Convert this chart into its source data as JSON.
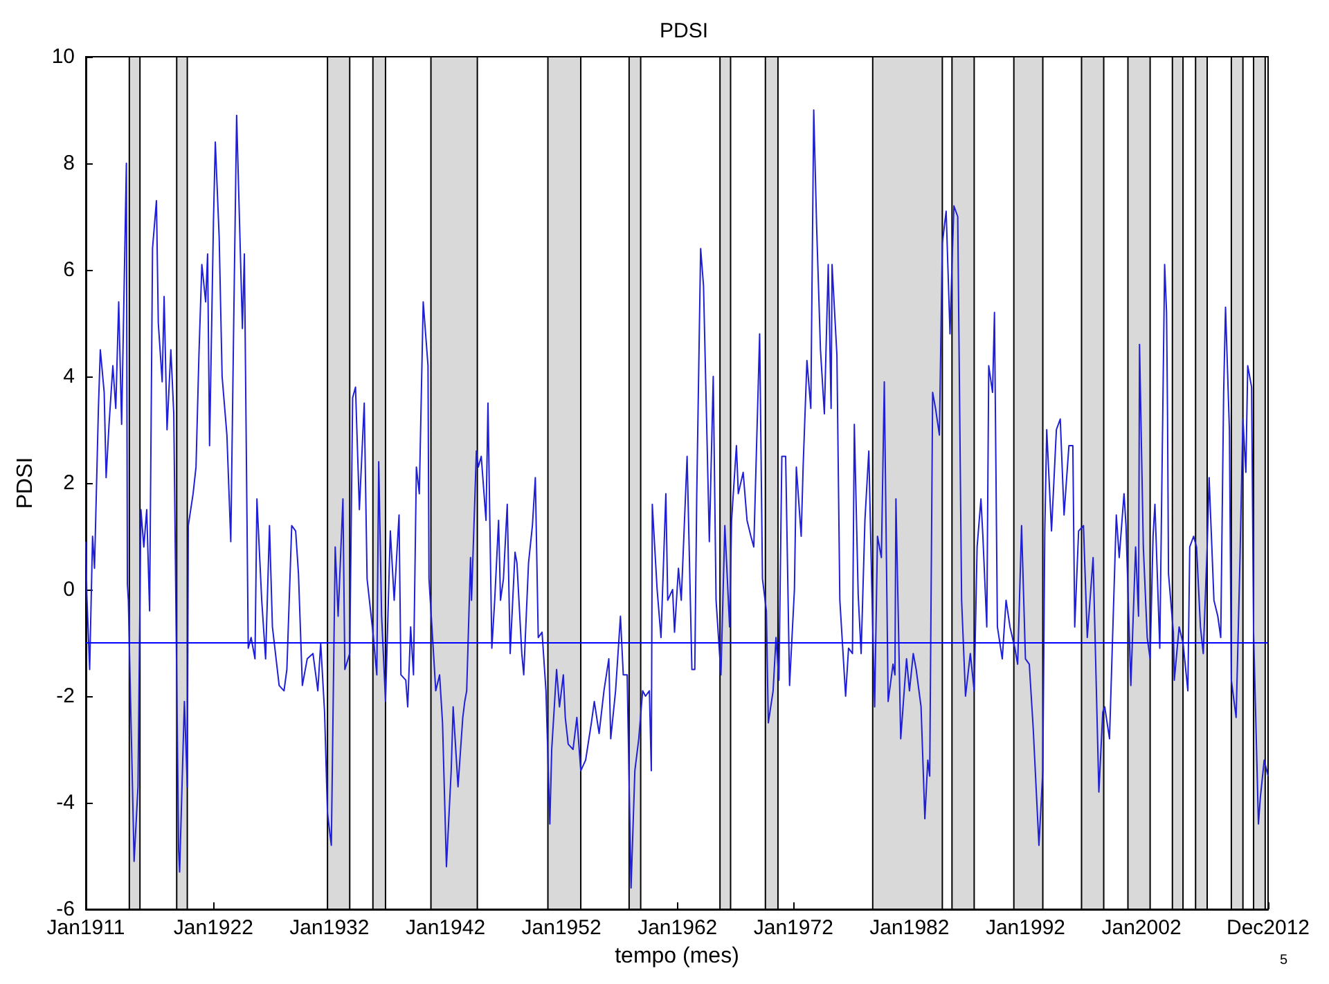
{
  "chart_data": {
    "type": "line",
    "title": "PDSI",
    "xlabel": "tempo (mes)",
    "ylabel": "PDSI",
    "xlim": [
      "1911-01",
      "2012-12"
    ],
    "xticks": [
      {
        "value": "1911-01",
        "label": "Jan1911"
      },
      {
        "value": "1922-01",
        "label": "Jan1922"
      },
      {
        "value": "1932-01",
        "label": "Jan1932"
      },
      {
        "value": "1942-01",
        "label": "Jan1942"
      },
      {
        "value": "1952-01",
        "label": "Jan1952"
      },
      {
        "value": "1962-01",
        "label": "Jan1962"
      },
      {
        "value": "1972-01",
        "label": "Jan1972"
      },
      {
        "value": "1982-01",
        "label": "Jan1982"
      },
      {
        "value": "1992-01",
        "label": "Jan1992"
      },
      {
        "value": "2002-01",
        "label": "Jan2002"
      },
      {
        "value": "2012-12",
        "label": "Dec2012"
      }
    ],
    "ylim": [
      -6,
      10
    ],
    "yticks": [
      -6,
      -4,
      -2,
      0,
      2,
      4,
      6,
      8,
      10
    ],
    "grid": false,
    "marker": "none",
    "line_style": "solid",
    "annotations": [
      "5"
    ],
    "ref_lines": [
      {
        "axis": "y",
        "value": -1,
        "label": null,
        "color": "#0000ff",
        "line_style": "solid"
      }
    ],
    "bands": [
      {
        "axis": "x",
        "from": "1914-10",
        "to": "1915-09",
        "label": null,
        "color": "#d9d9d9"
      },
      {
        "axis": "x",
        "from": "1918-11",
        "to": "1919-10",
        "label": null,
        "color": "#d9d9d9"
      },
      {
        "axis": "x",
        "from": "1931-11",
        "to": "1933-10",
        "label": null,
        "color": "#d9d9d9"
      },
      {
        "axis": "x",
        "from": "1935-10",
        "to": "1936-11",
        "label": null,
        "color": "#d9d9d9"
      },
      {
        "axis": "x",
        "from": "1940-10",
        "to": "1944-10",
        "label": null,
        "color": "#d9d9d9"
      },
      {
        "axis": "x",
        "from": "1950-11",
        "to": "1953-09",
        "label": null,
        "color": "#d9d9d9"
      },
      {
        "axis": "x",
        "from": "1957-11",
        "to": "1958-11",
        "label": null,
        "color": "#d9d9d9"
      },
      {
        "axis": "x",
        "from": "1965-09",
        "to": "1966-08",
        "label": null,
        "color": "#d9d9d9"
      },
      {
        "axis": "x",
        "from": "1969-08",
        "to": "1970-09",
        "label": null,
        "color": "#d9d9d9"
      },
      {
        "axis": "x",
        "from": "1978-11",
        "to": "1984-11",
        "label": null,
        "color": "#d9d9d9"
      },
      {
        "axis": "x",
        "from": "1985-09",
        "to": "1987-08",
        "label": null,
        "color": "#d9d9d9"
      },
      {
        "axis": "x",
        "from": "1991-01",
        "to": "1993-07",
        "label": null,
        "color": "#d9d9d9"
      },
      {
        "axis": "x",
        "from": "1996-11",
        "to": "1998-10",
        "label": null,
        "color": "#d9d9d9"
      },
      {
        "axis": "x",
        "from": "2000-11",
        "to": "2002-10",
        "label": null,
        "color": "#d9d9d9"
      },
      {
        "axis": "x",
        "from": "2004-09",
        "to": "2005-08",
        "label": null,
        "color": "#d9d9d9"
      },
      {
        "axis": "x",
        "from": "2006-09",
        "to": "2007-09",
        "label": null,
        "color": "#d9d9d9"
      },
      {
        "axis": "x",
        "from": "2009-10",
        "to": "2010-10",
        "label": null,
        "color": "#d9d9d9"
      },
      {
        "axis": "x",
        "from": "2011-09",
        "to": "2012-09",
        "label": null,
        "color": "#d9d9d9"
      }
    ],
    "series": [
      {
        "color": "#1f1fd6",
        "x": [
          "1911-01",
          "1911-02",
          "1911-05",
          "1911-08",
          "1911-10",
          "1912-02",
          "1912-04",
          "1912-08",
          "1912-10",
          "1913-01",
          "1913-05",
          "1913-08",
          "1913-11",
          "1914-02",
          "1914-07",
          "1914-08",
          "1914-09",
          "1915-03",
          "1915-07",
          "1915-10",
          "1916-01",
          "1916-04",
          "1916-07",
          "1916-10",
          "1917-02",
          "1917-04",
          "1917-08",
          "1917-10",
          "1918-01",
          "1918-05",
          "1918-08",
          "1919-01",
          "1919-02",
          "1919-07",
          "1919-10",
          "1919-11",
          "1920-04",
          "1920-07",
          "1920-10",
          "1921-01",
          "1921-05",
          "1921-07",
          "1921-09",
          "1922-01",
          "1922-03",
          "1922-07",
          "1922-10",
          "1923-03",
          "1923-07",
          "1923-10",
          "1924-01",
          "1924-07",
          "1924-09",
          "1925-01",
          "1925-04",
          "1925-08",
          "1925-10",
          "1926-03",
          "1926-07",
          "1926-11",
          "1927-02",
          "1927-09",
          "1928-02",
          "1928-05",
          "1928-10",
          "1929-02",
          "1929-05",
          "1929-09",
          "1930-02",
          "1930-08",
          "1931-01",
          "1931-04",
          "1931-08",
          "1931-11",
          "1932-03",
          "1932-07",
          "1932-10",
          "1933-03",
          "1933-05",
          "1933-10",
          "1934-01",
          "1934-04",
          "1934-08",
          "1935-01",
          "1935-04",
          "1935-10",
          "1936-02",
          "1936-04",
          "1936-07",
          "1936-11",
          "1937-04",
          "1937-08",
          "1938-01",
          "1938-03",
          "1938-08",
          "1938-10",
          "1939-01",
          "1939-04",
          "1939-07",
          "1939-10",
          "1940-02",
          "1940-07",
          "1940-08",
          "1941-01",
          "1941-03",
          "1941-07",
          "1941-10",
          "1942-02",
          "1942-07",
          "1942-09",
          "1943-02",
          "1943-07",
          "1943-09",
          "1943-11",
          "1944-03",
          "1944-04",
          "1944-09",
          "1944-11",
          "1945-02",
          "1945-07",
          "1945-09",
          "1946-01",
          "1946-04",
          "1946-08",
          "1946-10",
          "1947-01",
          "1947-05",
          "1947-08",
          "1948-01",
          "1948-03",
          "1948-08",
          "1948-10",
          "1949-03",
          "1949-07",
          "1949-10",
          "1950-01",
          "1950-05",
          "1950-09",
          "1951-01",
          "1951-03",
          "1951-08",
          "1951-11",
          "1952-03",
          "1952-05",
          "1952-08",
          "1953-01",
          "1953-05",
          "1953-09",
          "1954-02",
          "1954-08",
          "1954-11",
          "1955-04",
          "1955-09",
          "1956-02",
          "1956-04",
          "1956-09",
          "1957-02",
          "1957-05",
          "1957-09",
          "1958-01",
          "1958-05",
          "1958-09",
          "1959-01",
          "1959-04",
          "1959-08",
          "1959-10",
          "1959-11",
          "1960-04",
          "1960-08",
          "1961-01",
          "1961-03",
          "1961-08",
          "1961-10",
          "1962-02",
          "1962-05",
          "1962-11",
          "1963-04",
          "1963-07",
          "1963-09",
          "1964-01",
          "1964-04",
          "1964-10",
          "1965-02",
          "1965-05",
          "1965-10",
          "1966-02",
          "1966-07",
          "1966-09",
          "1967-02",
          "1967-04",
          "1967-09",
          "1968-01",
          "1968-05",
          "1968-08",
          "1969-02",
          "1969-05",
          "1969-09",
          "1969-11",
          "1970-04",
          "1970-07",
          "1970-10",
          "1971-01",
          "1971-05",
          "1971-09",
          "1972-02",
          "1972-04",
          "1972-09",
          "1972-11",
          "1973-03",
          "1973-07",
          "1973-10",
          "1974-01",
          "1974-05",
          "1974-09",
          "1975-01",
          "1975-02",
          "1975-04",
          "1975-05",
          "1975-10",
          "1976-01",
          "1976-07",
          "1976-10",
          "1977-02",
          "1977-04",
          "1977-08",
          "1977-11",
          "1978-03",
          "1978-07",
          "1978-10",
          "1979-01",
          "1979-04",
          "1979-08",
          "1979-11",
          "1980-03",
          "1980-08",
          "1980-10",
          "1980-11",
          "1981-04",
          "1981-10",
          "1982-01",
          "1982-05",
          "1982-08",
          "1983-01",
          "1983-05",
          "1983-08",
          "1983-10",
          "1984-01",
          "1984-04",
          "1984-08",
          "1984-11",
          "1985-03",
          "1985-07",
          "1985-09",
          "1985-11",
          "1986-03",
          "1986-07",
          "1986-11",
          "1987-04",
          "1987-08",
          "1987-11",
          "1988-03",
          "1988-05",
          "1988-09",
          "1988-11",
          "1989-03",
          "1989-05",
          "1989-08",
          "1990-01",
          "1990-05",
          "1990-09",
          "1991-02",
          "1991-05",
          "1991-09",
          "1992-01",
          "1992-05",
          "1992-09",
          "1993-03",
          "1993-07",
          "1993-09",
          "1993-11",
          "1994-04",
          "1994-09",
          "1995-01",
          "1995-05",
          "1995-10",
          "1996-02",
          "1996-04",
          "1996-08",
          "1997-01",
          "1997-05",
          "1997-11",
          "1998-05",
          "1998-09",
          "1998-11",
          "1999-04",
          "1999-11",
          "2000-02",
          "2000-07",
          "2000-09",
          "2001-02",
          "2001-07",
          "2001-10",
          "2001-11",
          "2002-03",
          "2002-07",
          "2002-10",
          "2003-01",
          "2003-03",
          "2003-08",
          "2004-01",
          "2004-03",
          "2004-04",
          "2004-05",
          "2004-10",
          "2004-11",
          "2005-04",
          "2005-08",
          "2006-01",
          "2006-03",
          "2006-07",
          "2006-10",
          "2007-02",
          "2007-05",
          "2007-09",
          "2007-11",
          "2008-04",
          "2008-08",
          "2008-11",
          "2009-02",
          "2009-04",
          "2009-08",
          "2009-10",
          "2010-03",
          "2010-07",
          "2010-10",
          "2011-01",
          "2011-03",
          "2011-07",
          "2011-09",
          "2012-02",
          "2012-04",
          "2012-08",
          "2012-12"
        ],
        "values": [
          0.9,
          -0.1,
          -1.5,
          1.0,
          0.4,
          3.4,
          4.5,
          3.7,
          2.1,
          3.1,
          4.2,
          3.4,
          5.4,
          3.1,
          8.0,
          0.1,
          -0.2,
          -5.1,
          -3.7,
          1.5,
          0.8,
          1.5,
          -0.4,
          6.4,
          7.3,
          5.0,
          3.9,
          5.5,
          3.0,
          4.5,
          3.3,
          -4.9,
          -5.3,
          -2.1,
          -3.7,
          1.2,
          1.8,
          2.3,
          4.4,
          6.1,
          5.4,
          6.3,
          2.7,
          6.9,
          8.4,
          6.6,
          4.0,
          2.9,
          0.9,
          5.0,
          8.9,
          4.9,
          6.3,
          -1.1,
          -0.9,
          -1.3,
          1.7,
          -0.2,
          -1.3,
          1.2,
          -0.7,
          -1.8,
          -1.9,
          -1.5,
          1.2,
          1.1,
          0.3,
          -1.8,
          -1.3,
          -1.2,
          -1.9,
          -1.0,
          -2.3,
          -4.2,
          -4.8,
          0.8,
          -0.5,
          1.7,
          -1.5,
          -1.2,
          3.6,
          3.8,
          1.5,
          3.5,
          0.2,
          -0.8,
          -1.6,
          2.4,
          -0.5,
          -2.1,
          1.1,
          -0.2,
          1.4,
          -1.6,
          -1.7,
          -2.2,
          -0.7,
          -1.6,
          2.3,
          1.8,
          5.4,
          4.2,
          0.2,
          -1.3,
          -1.9,
          -1.6,
          -2.5,
          -5.2,
          -3.4,
          -2.2,
          -3.7,
          -2.4,
          -2.1,
          -1.9,
          0.6,
          -0.2,
          2.6,
          2.3,
          2.5,
          1.3,
          3.5,
          -1.1,
          -0.2,
          1.3,
          -0.2,
          0.2,
          1.6,
          -1.2,
          0.7,
          0.5,
          -1.2,
          -1.6,
          0.5,
          1.2,
          2.1,
          -0.9,
          -0.8,
          -1.9,
          -4.4,
          -3.0,
          -1.5,
          -2.2,
          -1.6,
          -2.4,
          -2.9,
          -3.0,
          -2.4,
          -3.4,
          -3.2,
          -2.5,
          -2.1,
          -2.7,
          -1.9,
          -1.3,
          -2.8,
          -1.9,
          -0.5,
          -1.6,
          -1.6,
          -5.6,
          -3.4,
          -2.8,
          -1.9,
          -2.0,
          -1.9,
          -3.4,
          1.6,
          0.0,
          -0.9,
          1.8,
          -0.2,
          0.0,
          -0.8,
          0.4,
          -0.2,
          2.5,
          -1.5,
          -1.5,
          1.8,
          6.4,
          5.7,
          0.9,
          4.0,
          -0.2,
          -1.6,
          1.2,
          -0.7,
          1.3,
          2.7,
          1.8,
          2.2,
          1.3,
          1.0,
          0.8,
          4.8,
          0.2,
          -0.4,
          -2.5,
          -1.9,
          -0.9,
          -1.7,
          2.5,
          2.5,
          -1.8,
          0.0,
          2.3,
          1.0,
          2.3,
          4.3,
          3.4,
          9.0,
          6.8,
          4.5,
          3.3,
          6.1,
          5.2,
          3.4,
          6.1,
          4.4,
          -0.2,
          -2.0,
          -1.1,
          -1.2,
          3.1,
          -0.1,
          -1.2,
          1.3,
          2.6,
          0.1,
          -2.2,
          1.0,
          0.6,
          3.9,
          -2.1,
          -1.4,
          -1.6,
          1.7,
          -2.8,
          -1.3,
          -1.9,
          -1.2,
          -1.5,
          -2.2,
          -4.3,
          -3.2,
          -3.5,
          3.7,
          3.4,
          2.9,
          6.5,
          7.1,
          4.8,
          6.1,
          7.2,
          7.0,
          -0.2,
          -2.0,
          -1.2,
          -1.9,
          0.8,
          1.7,
          1.0,
          -0.7,
          4.2,
          3.7,
          5.2,
          -0.7,
          -1.3,
          -0.2,
          -0.7,
          -1.1,
          -1.4,
          1.2,
          -1.3,
          -1.4,
          -2.6,
          -4.8,
          -3.4,
          1.1,
          3.0,
          1.1,
          3.0,
          3.2,
          1.4,
          2.7,
          2.7,
          -0.7,
          1.1,
          1.2,
          -0.9,
          0.6,
          -3.8,
          -2.3,
          -2.2,
          -2.8,
          1.4,
          0.6,
          1.8,
          1.2,
          -1.8,
          0.8,
          -0.5,
          4.6,
          0.8,
          -0.9,
          -1.3,
          1.0,
          1.6,
          -1.1,
          6.1,
          5.2,
          3.3,
          0.3,
          -0.8,
          -1.7,
          -0.7,
          -1.0,
          -1.9,
          0.8,
          1.0,
          0.8,
          -0.7,
          -1.2,
          0.8,
          2.1,
          -0.2,
          -0.5,
          -0.9,
          3.7,
          5.3,
          3.0,
          -1.7,
          -2.4,
          0.6,
          3.2,
          2.2,
          4.2,
          3.8,
          -0.8,
          -4.4,
          -3.9,
          -3.2,
          -3.5
        ]
      }
    ]
  }
}
